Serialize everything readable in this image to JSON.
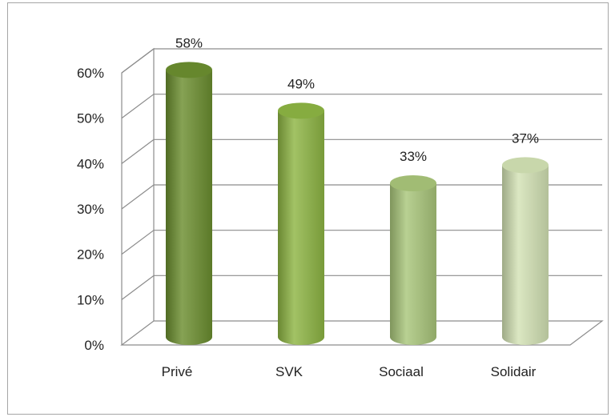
{
  "chart_data": {
    "type": "bar",
    "style": "3d-cylinder",
    "categories": [
      "Privé",
      "SVK",
      "Sociaal",
      "Solidair"
    ],
    "values": [
      58,
      49,
      33,
      37
    ],
    "data_labels": [
      "58%",
      "49%",
      "33%",
      "37%"
    ],
    "ylim": [
      0,
      60
    ],
    "yticks": [
      "0%",
      "10%",
      "20%",
      "30%",
      "40%",
      "50%",
      "60%"
    ],
    "grid": true,
    "legend": "none",
    "colors": [
      "#6b8e2f",
      "#8db543",
      "#a9c67a",
      "#d3e2b4"
    ]
  }
}
